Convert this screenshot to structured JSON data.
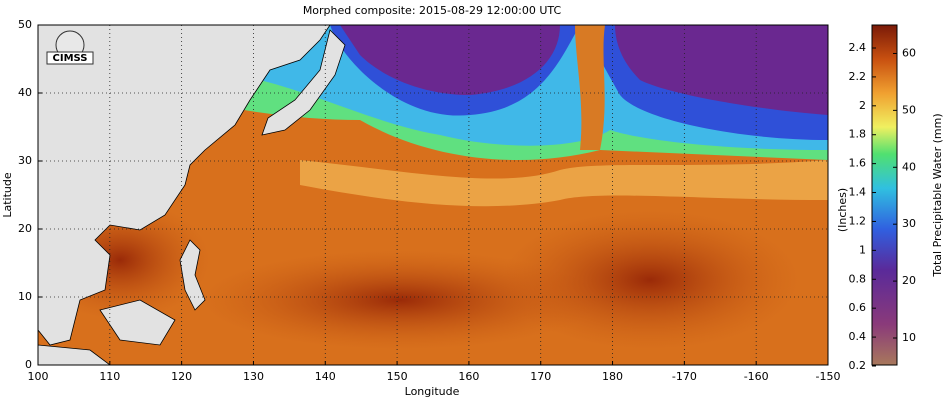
{
  "map": {
    "title": "Morphed composite: 2015-08-29 12:00:00 UTC",
    "x_label": "Longitude",
    "y_label": "Latitude",
    "xticks": [
      100,
      110,
      120,
      130,
      140,
      150,
      160,
      170,
      180,
      -170,
      -160,
      -150
    ],
    "yticks": [
      0,
      10,
      20,
      30,
      40,
      50
    ],
    "logo": "CIMSS",
    "colorbar": {
      "left_label": "(Inches)",
      "right_label": "Total Precipitable Water (mm)",
      "inch_ticks": [
        0.2,
        0.4,
        0.6,
        0.8,
        1,
        1.2,
        1.4,
        1.6,
        1.8,
        2,
        2.2,
        2.4
      ],
      "mm_ticks": [
        10,
        20,
        30,
        40,
        50,
        60
      ]
    }
  }
}
